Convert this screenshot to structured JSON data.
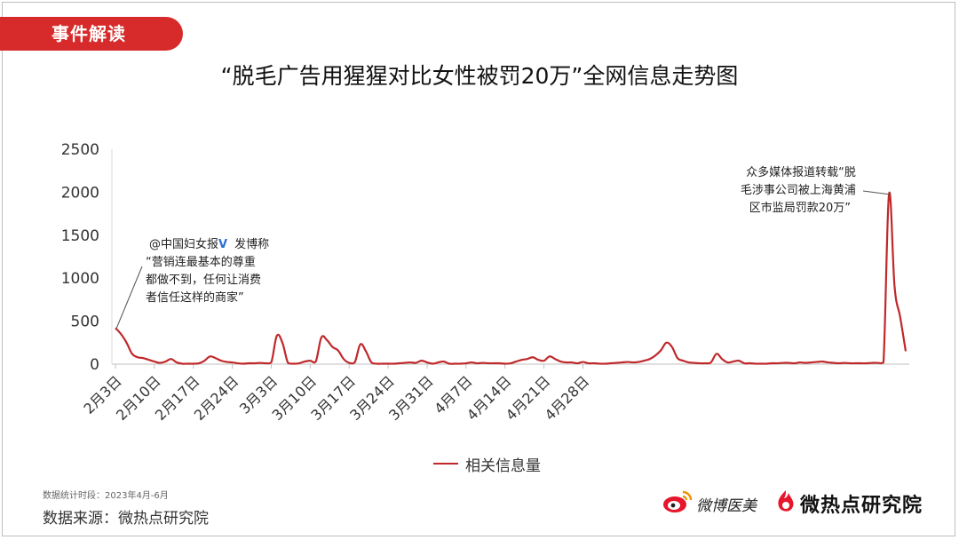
{
  "header": {
    "tag": "事件解读",
    "title": "“脱毛广告用猩猩对比女性被罚20万”全网信息走势图"
  },
  "chart_data": {
    "type": "line",
    "ylim": [
      0,
      2500
    ],
    "yticks": [
      0,
      500,
      1000,
      1500,
      2000,
      2500
    ],
    "xtick_labels": [
      "2月3日",
      "2月10日",
      "2月17日",
      "2月24日",
      "3月3日",
      "3月10日",
      "3月17日",
      "3月24日",
      "3月31日",
      "4月7日",
      "4月14日",
      "4月21日",
      "4月28日"
    ],
    "grid": false,
    "legend_position": "bottom",
    "series": [
      {
        "name": "相关信息量",
        "color": "#c0282a",
        "values": [
          420,
          350,
          250,
          120,
          80,
          70,
          50,
          30,
          15,
          30,
          60,
          20,
          5,
          5,
          5,
          10,
          40,
          90,
          70,
          40,
          25,
          20,
          10,
          5,
          10,
          10,
          15,
          10,
          20,
          330,
          250,
          15,
          5,
          10,
          30,
          40,
          30,
          310,
          280,
          200,
          160,
          60,
          15,
          20,
          230,
          150,
          20,
          5,
          5,
          5,
          5,
          10,
          15,
          20,
          15,
          40,
          20,
          5,
          20,
          30,
          5,
          5,
          5,
          10,
          20,
          10,
          15,
          10,
          10,
          10,
          5,
          10,
          30,
          50,
          60,
          80,
          50,
          40,
          90,
          60,
          30,
          20,
          20,
          10,
          25,
          10,
          10,
          5,
          5,
          10,
          15,
          20,
          25,
          20,
          25,
          40,
          60,
          100,
          160,
          250,
          200,
          70,
          40,
          20,
          15,
          10,
          10,
          20,
          120,
          60,
          20,
          30,
          40,
          10,
          10,
          5,
          5,
          5,
          10,
          10,
          15,
          15,
          10,
          20,
          15,
          20,
          25,
          30,
          20,
          15,
          10,
          15,
          10,
          10,
          10,
          10,
          15,
          15,
          20,
          1980,
          900,
          550,
          150
        ]
      }
    ],
    "annotations": [
      {
        "lines": [
          "@中国妇女报",
          "发博称",
          "“营销连最基本的尊重",
          "都做不到，任何让消费",
          "者信任这样的商家”"
        ],
        "verified_mark": "V"
      },
      {
        "lines": [
          "众多媒体报道转载“脱",
          "毛涉事公司被上海黄浦",
          "区市监局罚款20万”"
        ]
      }
    ]
  },
  "footer": {
    "period": "数据统计时段：2023年4月-6月",
    "source": "数据来源：微热点研究院",
    "logo_weibo": "微博医美",
    "logo_wrd": "微热点研究院"
  },
  "colors": {
    "accent": "#d72a2a",
    "line": "#c0282a"
  }
}
